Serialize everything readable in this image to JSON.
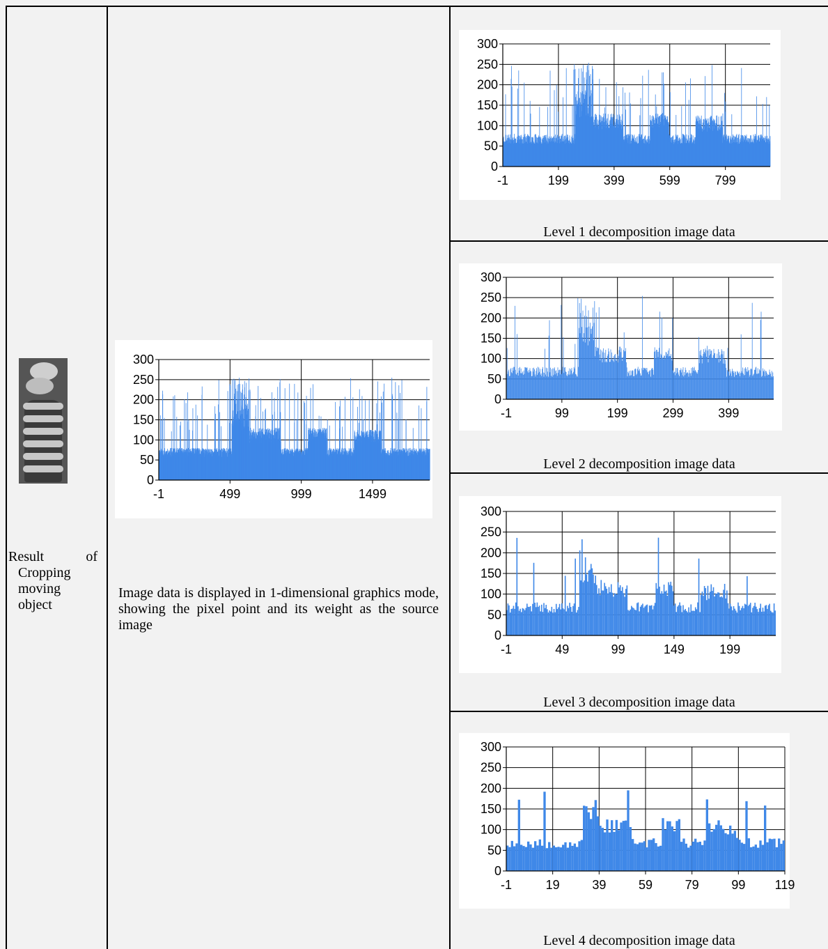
{
  "left_label": [
    "Result of",
    "Cropping",
    "moving",
    "object"
  ],
  "middle_description": "Image data is displayed in 1-dimensional graphics mode, showing the pixel point and its weight as the source image",
  "colors": {
    "bar": "#3f88e8",
    "grid": "#000000",
    "background": "#ffffff"
  },
  "chart_data": [
    {
      "type": "bar",
      "caption": "",
      "x_ticks": [
        "-1",
        "499",
        "999",
        "1499"
      ],
      "y_ticks": [
        "0",
        "50",
        "100",
        "150",
        "200",
        "250",
        "300"
      ],
      "ylim": [
        0,
        300
      ],
      "xlim": [
        -1,
        1900
      ],
      "n": 1900,
      "seed": 11
    },
    {
      "type": "bar",
      "caption": "Level 1 decomposition image data",
      "x_ticks": [
        "-1",
        "199",
        "399",
        "599",
        "799"
      ],
      "y_ticks": [
        "0",
        "50",
        "100",
        "150",
        "200",
        "250",
        "300"
      ],
      "ylim": [
        0,
        300
      ],
      "xlim": [
        -1,
        960
      ],
      "n": 960,
      "seed": 23
    },
    {
      "type": "bar",
      "caption": "Level 2 decomposition image data",
      "x_ticks": [
        "-1",
        "99",
        "199",
        "299",
        "399"
      ],
      "y_ticks": [
        "0",
        "50",
        "100",
        "150",
        "200",
        "250",
        "300"
      ],
      "ylim": [
        0,
        300
      ],
      "xlim": [
        -1,
        480
      ],
      "n": 480,
      "seed": 37
    },
    {
      "type": "bar",
      "caption": "Level 3 decomposition image data",
      "x_ticks": [
        "-1",
        "49",
        "99",
        "149",
        "199"
      ],
      "y_ticks": [
        "0",
        "50",
        "100",
        "150",
        "200",
        "250",
        "300"
      ],
      "ylim": [
        0,
        300
      ],
      "xlim": [
        -1,
        240
      ],
      "n": 240,
      "seed": 41
    },
    {
      "type": "bar",
      "caption": "Level 4 decomposition image data",
      "x_ticks": [
        "-1",
        "19",
        "39",
        "59",
        "79",
        "99",
        "119"
      ],
      "y_ticks": [
        "0",
        "50",
        "100",
        "150",
        "200",
        "250",
        "300"
      ],
      "ylim": [
        0,
        300
      ],
      "xlim": [
        -1,
        119
      ],
      "n": 120,
      "seed": 53
    }
  ]
}
